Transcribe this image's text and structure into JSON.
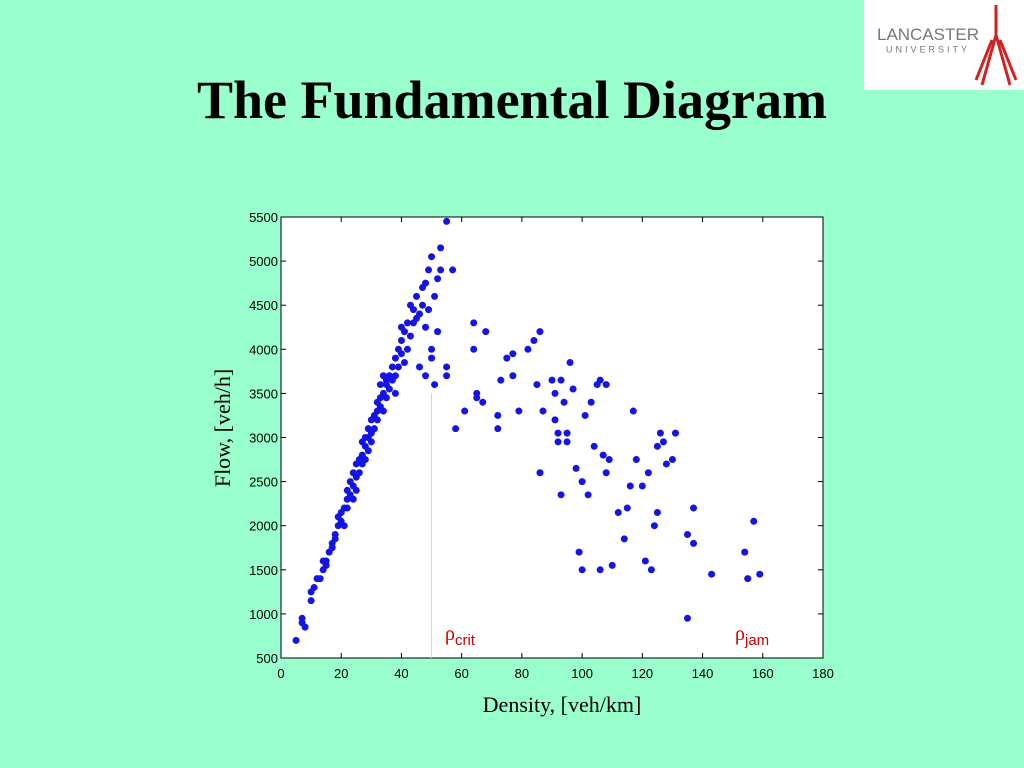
{
  "logo": {
    "line1": "LANCASTER",
    "line2": "UNIVERSITY"
  },
  "chart_data": {
    "type": "scatter",
    "title": "The Fundamental Diagram",
    "x_label": "Density, [veh/km]",
    "y_label": "Flow, [veh/h]",
    "color": "#1414e6",
    "xlim": [
      0,
      180
    ],
    "ylim": [
      500,
      5500
    ],
    "xticks": [
      0,
      20,
      40,
      60,
      80,
      100,
      120,
      140,
      160,
      180
    ],
    "yticks": [
      500,
      1000,
      1500,
      2000,
      2500,
      3000,
      3500,
      4000,
      4500,
      5000,
      5500
    ],
    "annotations": [
      {
        "symbol": "ρ",
        "subscript": "crit"
      },
      {
        "symbol": "ρ",
        "subscript": "jam"
      }
    ],
    "reference_line": {
      "x": 50,
      "y_top": 3500
    },
    "x": [
      5,
      7,
      7,
      8,
      10,
      10,
      11,
      12,
      13,
      14,
      14,
      15,
      15,
      16,
      17,
      17,
      18,
      18,
      19,
      19,
      20,
      20,
      21,
      21,
      22,
      22,
      22,
      23,
      23,
      24,
      24,
      24,
      25,
      25,
      25,
      26,
      26,
      27,
      27,
      27,
      28,
      28,
      28,
      29,
      29,
      29,
      30,
      30,
      30,
      31,
      31,
      32,
      32,
      32,
      33,
      33,
      33,
      34,
      34,
      34,
      35,
      35,
      35,
      36,
      36,
      37,
      37,
      38,
      38,
      38,
      39,
      39,
      40,
      40,
      40,
      41,
      41,
      42,
      42,
      43,
      43,
      44,
      44,
      45,
      45,
      46,
      46,
      47,
      47,
      48,
      48,
      49,
      49,
      50,
      50,
      51,
      51,
      52,
      52,
      53,
      53,
      55,
      55,
      55,
      48,
      50,
      57,
      58,
      61,
      64,
      64,
      65,
      65,
      67,
      68,
      72,
      72,
      73,
      75,
      77,
      77,
      79,
      82,
      84,
      85,
      86,
      86,
      87,
      90,
      91,
      91,
      92,
      92,
      93,
      93,
      94,
      95,
      95,
      96,
      97,
      98,
      99,
      100,
      100,
      101,
      102,
      103,
      104,
      105,
      106,
      106,
      107,
      108,
      108,
      109,
      110,
      112,
      114,
      115,
      116,
      117,
      118,
      120,
      121,
      122,
      123,
      124,
      125,
      125,
      126,
      127,
      128,
      130,
      131,
      135,
      135,
      137,
      137,
      143,
      154,
      155,
      157,
      159
    ],
    "y": [
      700,
      900,
      950,
      850,
      1150,
      1250,
      1300,
      1400,
      1400,
      1500,
      1600,
      1550,
      1600,
      1700,
      1800,
      1750,
      1850,
      1900,
      2000,
      2100,
      2050,
      2150,
      2200,
      2000,
      2300,
      2400,
      2200,
      2350,
      2500,
      2450,
      2600,
      2300,
      2700,
      2550,
      2400,
      2750,
      2600,
      2800,
      2950,
      2700,
      3000,
      2900,
      2750,
      3100,
      3000,
      2850,
      3200,
      3050,
      2950,
      3250,
      3100,
      3300,
      3400,
      3200,
      3450,
      3350,
      3600,
      3500,
      3700,
      3300,
      3600,
      3650,
      3450,
      3700,
      3550,
      3800,
      3650,
      3900,
      3700,
      3500,
      4000,
      3800,
      4100,
      3950,
      4250,
      4200,
      3850,
      4300,
      4000,
      4500,
      4150,
      4450,
      4300,
      4600,
      4350,
      4400,
      3800,
      4700,
      4500,
      4750,
      4250,
      4900,
      4450,
      5050,
      4000,
      4600,
      3600,
      4800,
      4200,
      5150,
      4900,
      5450,
      3800,
      3700,
      3700,
      3900,
      4900,
      3100,
      3300,
      4300,
      4000,
      3450,
      3500,
      3400,
      4200,
      3100,
      3250,
      3650,
      3900,
      3950,
      3700,
      3300,
      4000,
      4100,
      3600,
      2600,
      4200,
      3300,
      3650,
      3200,
      3500,
      2950,
      3050,
      2350,
      3650,
      3400,
      3050,
      2950,
      3850,
      3550,
      2650,
      1700,
      1500,
      2500,
      3250,
      2350,
      3400,
      2900,
      3600,
      1500,
      3650,
      2800,
      2600,
      3600,
      2750,
      1550,
      2150,
      1850,
      2200,
      2450,
      3300,
      2750,
      2450,
      1600,
      2600,
      1500,
      2000,
      2150,
      2900,
      3050,
      2950,
      2700,
      2750,
      3050,
      950,
      1900,
      2200,
      1800,
      1450,
      1700,
      1400,
      2050,
      1450
    ]
  }
}
